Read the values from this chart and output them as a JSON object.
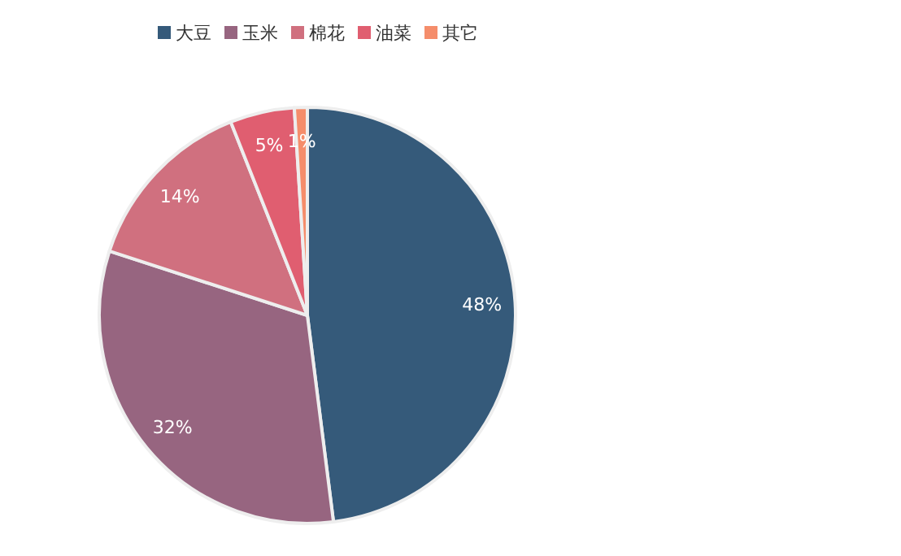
{
  "chart_data": {
    "type": "pie",
    "categories": [
      "大豆",
      "玉米",
      "棉花",
      "油菜",
      "其它"
    ],
    "values": [
      48,
      32,
      14,
      5,
      1
    ],
    "value_labels": [
      "48%",
      "32%",
      "14%",
      "5%",
      "1%"
    ],
    "colors": [
      "#355a7a",
      "#976580",
      "#d0707f",
      "#e05e70",
      "#f58d6b"
    ],
    "legend": "top"
  }
}
